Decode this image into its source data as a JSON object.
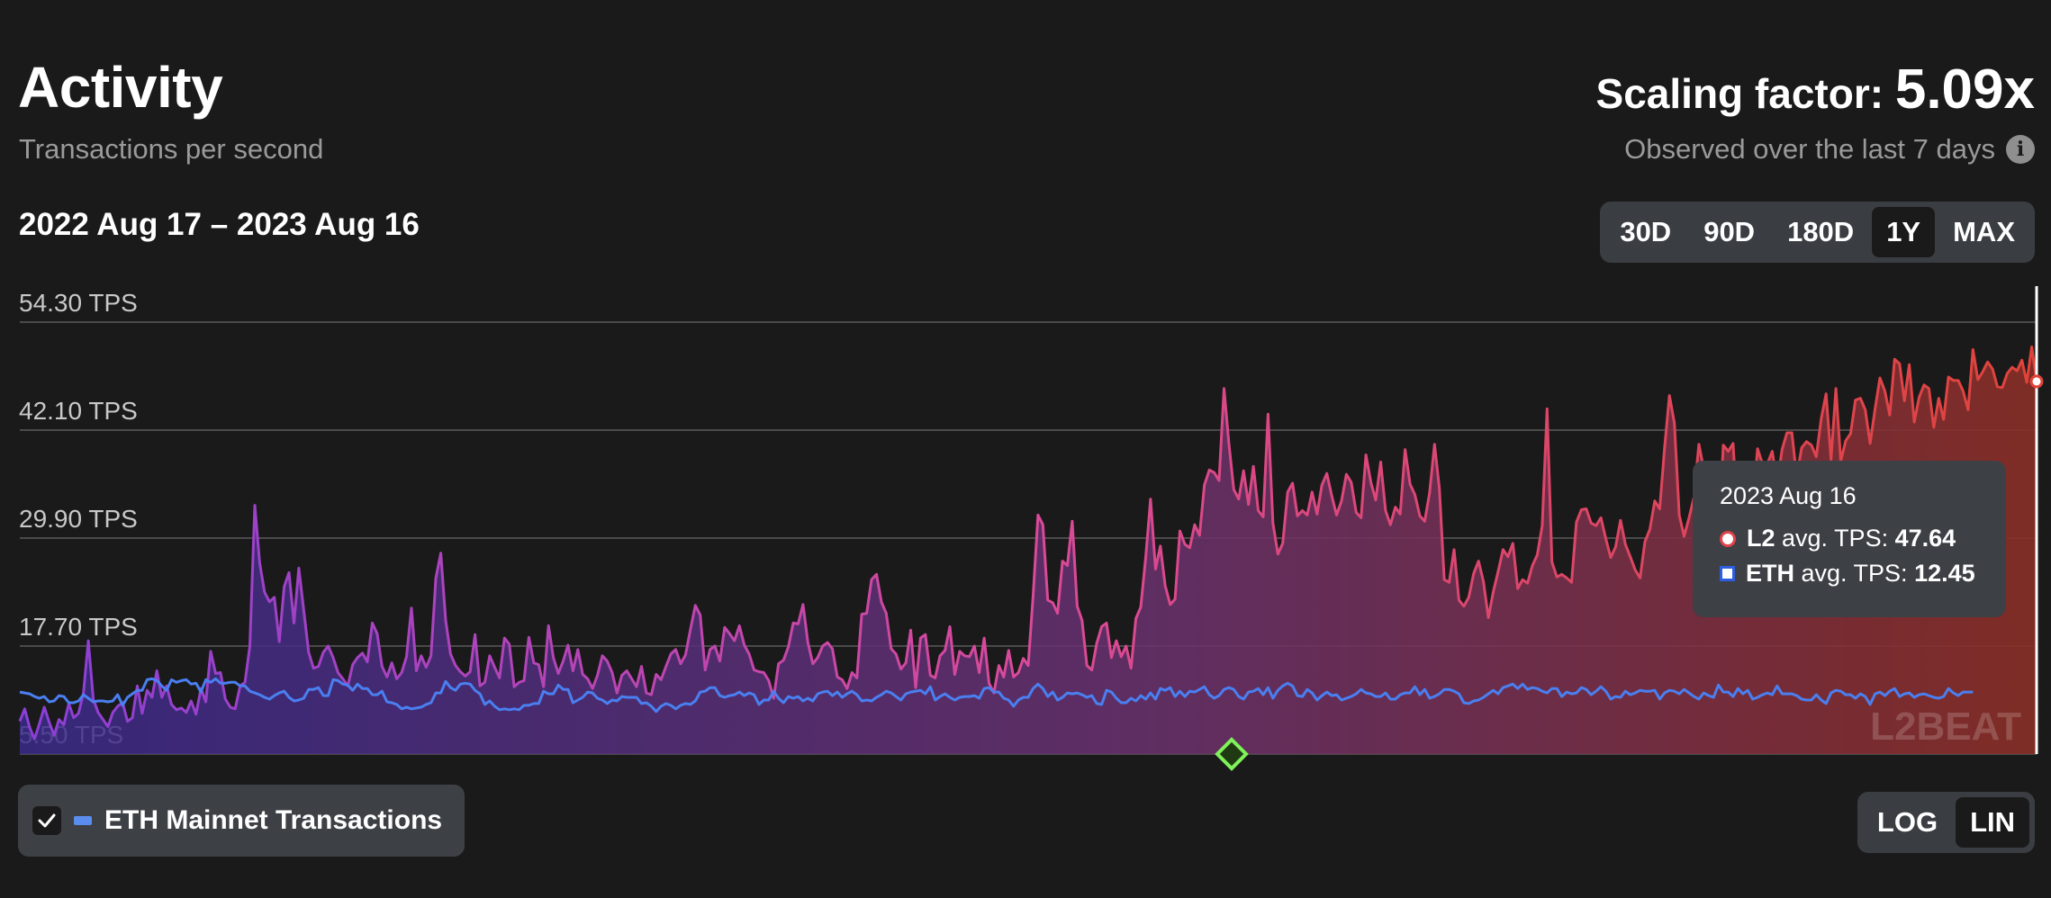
{
  "header": {
    "title": "Activity",
    "subtitle": "Transactions per second",
    "date_range": "2022 Aug 17 – 2023 Aug 16",
    "scaling_label": "Scaling factor: ",
    "scaling_value": "5.09x",
    "observed": "Observed over the last 7 days",
    "info_icon": "i"
  },
  "range_buttons": [
    "30D",
    "90D",
    "180D",
    "1Y",
    "MAX"
  ],
  "range_active": "1Y",
  "scale_buttons": [
    "LOG",
    "LIN"
  ],
  "scale_active": "LIN",
  "toggle": {
    "label": "ETH Mainnet Transactions",
    "checked": true
  },
  "watermark": "L2BEAT",
  "tooltip": {
    "date": "2023 Aug 16",
    "l2_label": "L2",
    "l2_suffix": " avg. TPS: ",
    "l2_value": "47.64",
    "eth_label": "ETH",
    "eth_suffix": " avg. TPS: ",
    "eth_value": "12.45"
  },
  "colors": {
    "background": "#1a1a1a",
    "l2_start": "#8b3fd6",
    "l2_mid": "#d94a9a",
    "l2_end": "#e0433a",
    "eth_line": "#4a7ff0",
    "gridline": "#5a5a5a",
    "milestone": "#7ff25a"
  },
  "chart_data": {
    "type": "line",
    "start_date": "2022 Aug 17",
    "end_date": "2023 Aug 16",
    "ylabels": [
      "54.30 TPS",
      "42.10 TPS",
      "29.90 TPS",
      "17.70 TPS",
      "5.50 TPS"
    ],
    "y_ticks": [
      54.3,
      42.1,
      29.9,
      17.7,
      5.5
    ],
    "ylim": [
      5.5,
      54.3
    ],
    "scale": "linear",
    "grid": true,
    "legend": "bottom-left",
    "milestone_date": "2023 Feb 27",
    "series": [
      {
        "name": "L2",
        "values": [
          9.2,
          10.6,
          8.5,
          7.2,
          8.9,
          10.8,
          9.1,
          7.6,
          9.4,
          8.8,
          11.2,
          9.6,
          10.1,
          12.4,
          18.3,
          11.7,
          10.2,
          9.4,
          8.6,
          10.2,
          10.9,
          11.3,
          9.2,
          9.6,
          13.2,
          10.1,
          12.7,
          11.9,
          14.9,
          11.9,
          13.2,
          11.1,
          10.5,
          10.7,
          10.2,
          11.5,
          10.0,
          12.9,
          11.4,
          17.1,
          14.6,
          14.7,
          11.7,
          10.8,
          10.6,
          13.2,
          13.6,
          17.7,
          33.6,
          27.1,
          23.8,
          22.7,
          23.2,
          18.2,
          24.4,
          26.0,
          20.3,
          26.5,
          21.8,
          17.0,
          15.2,
          15.4,
          17.0,
          17.7,
          16.4,
          14.7,
          14.0,
          13.2,
          15.6,
          16.4,
          16.9,
          15.9,
          20.3,
          19.1,
          15.4,
          14.2,
          15.8,
          14.0,
          14.7,
          16.5,
          22.0,
          14.9,
          16.6,
          15.3,
          16.6,
          25.4,
          28.2,
          20.6,
          16.8,
          15.5,
          14.8,
          14.3,
          14.8,
          19.0,
          13.2,
          13.6,
          16.6,
          15.3,
          14.1,
          18.6,
          17.9,
          13.1,
          13.6,
          13.8,
          18.7,
          15.8,
          15.6,
          13.1,
          20.0,
          16.4,
          14.6,
          16.0,
          17.8,
          14.9,
          17.3,
          14.5,
          14.0,
          12.9,
          14.4,
          16.6,
          16.0,
          14.7,
          12.4,
          14.4,
          14.9,
          14.0,
          13.1,
          15.4,
          12.4,
          12.2,
          14.5,
          13.9,
          15.4,
          16.8,
          17.3,
          15.7,
          16.7,
          19.6,
          22.3,
          21.2,
          15.0,
          17.3,
          17.7,
          16.0,
          19.8,
          19.1,
          18.3,
          20.0,
          17.8,
          16.8,
          15.0,
          14.8,
          14.7,
          13.8,
          11.8,
          15.7,
          16.1,
          17.6,
          20.3,
          20.2,
          22.4,
          18.1,
          15.7,
          16.4,
          17.7,
          18.1,
          17.4,
          14.2,
          13.9,
          12.9,
          14.7,
          14.1,
          21.3,
          21.4,
          25.2,
          25.8,
          22.7,
          21.4,
          17.4,
          16.8,
          15.1,
          15.8,
          19.5,
          13.0,
          18.6,
          19.0,
          14.4,
          14.1,
          16.6,
          17.2,
          19.9,
          14.5,
          17.1,
          16.6,
          16.5,
          17.7,
          14.7,
          18.6,
          13.5,
          12.4,
          15.5,
          14.2,
          17.2,
          14.2,
          14.7,
          16.3,
          15.5,
          23.3,
          32.5,
          31.4,
          22.9,
          22.6,
          21.4,
          27.3,
          26.8,
          31.8,
          22.2,
          20.6,
          15.5,
          15.0,
          18.0,
          19.9,
          20.3,
          16.4,
          18.3,
          16.5,
          17.7,
          15.2,
          20.8,
          22.1,
          27.7,
          34.3,
          26.4,
          29.0,
          24.5,
          22.4,
          23.0,
          30.7,
          29.2,
          28.8,
          31.4,
          30.2,
          35.9,
          37.6,
          37.3,
          36.4,
          46.8,
          40.6,
          35.4,
          34.3,
          37.5,
          33.7,
          38.0,
          33.0,
          32.3,
          43.9,
          31.6,
          28.1,
          29.3,
          35.1,
          36.1,
          32.4,
          33.0,
          32.5,
          35.1,
          32.6,
          35.9,
          37.2,
          34.7,
          32.5,
          34.1,
          37.1,
          36.2,
          32.8,
          32.2,
          39.3,
          36.2,
          34.2,
          38.5,
          33.0,
          31.4,
          33.4,
          32.6,
          39.9,
          36.0,
          34.8,
          32.4,
          31.8,
          35.0,
          40.5,
          35.5,
          25.2,
          24.9,
          28.6,
          22.9,
          22.2,
          23.2,
          25.9,
          27.3,
          25.0,
          20.9,
          23.8,
          26.1,
          28.6,
          27.8,
          29.3,
          24.2,
          25.2,
          24.8,
          26.8,
          28.0,
          31.3,
          44.5,
          27.2,
          25.5,
          25.8,
          25.4,
          24.9,
          31.7,
          33.1,
          33.2,
          31.6,
          31.3,
          32.2,
          29.8,
          27.7,
          28.9,
          31.9,
          29.2,
          27.8,
          26.3,
          25.4,
          29.5,
          30.9,
          34.1,
          33.2,
          40.1,
          46.0,
          42.9,
          32.5,
          30.1,
          32.2,
          34.5,
          40.5,
          37.7,
          32.4,
          37.8,
          29.3,
          40.4,
          39.7,
          40.6,
          31.2,
          37.9,
          34.7,
          33.5,
          40.0,
          38.3,
          38.3,
          39.7,
          36.0,
          39.9,
          41.8,
          41.8,
          36.8,
          40.1,
          40.8,
          40.4,
          39.1,
          43.4,
          46.2,
          38.8,
          46.8,
          38.6,
          40.9,
          41.7,
          45.5,
          45.7,
          44.4,
          40.6,
          44.5,
          48.0,
          46.5,
          43.8,
          50.1,
          49.6,
          45.4,
          49.5,
          43.0,
          45.8,
          47.2,
          46.8,
          42.4,
          45.7,
          43.3,
          48.1,
          47.7,
          47.7,
          46.5,
          44.4,
          51.2,
          47.8,
          48.7,
          49.8,
          49.0,
          47.0,
          46.9,
          48.5,
          49.2,
          48.8,
          50.0,
          47.5,
          51.5,
          47.6
        ]
      },
      {
        "name": "ETH",
        "values": [
          12.5,
          12.4,
          12.3,
          12.0,
          11.8,
          12.0,
          11.4,
          11.5,
          12.1,
          12.0,
          11.3,
          11.3,
          11.5,
          12.2,
          11.8,
          11.4,
          11.5,
          11.5,
          11.4,
          11.5,
          12.2,
          11.0,
          11.9,
          12.3,
          12.7,
          12.7,
          13.9,
          14.0,
          13.8,
          13.2,
          12.7,
          13.9,
          13.6,
          13.8,
          13.9,
          13.4,
          13.5,
          12.5,
          13.9,
          13.6,
          14.0,
          13.5,
          13.5,
          13.6,
          13.6,
          13.2,
          13.2,
          12.6,
          12.4,
          12.2,
          11.9,
          11.7,
          12.1,
          12.4,
          12.6,
          11.9,
          11.5,
          11.6,
          11.8,
          12.8,
          12.8,
          13.0,
          12.1,
          12.1,
          13.9,
          13.8,
          13.4,
          13.3,
          12.7,
          13.4,
          12.9,
          12.9,
          12.2,
          12.2,
          12.6,
          11.4,
          11.3,
          11.1,
          10.6,
          10.8,
          10.6,
          10.7,
          10.8,
          11.1,
          11.3,
          12.4,
          12.4,
          13.7,
          13.0,
          12.7,
          13.4,
          13.5,
          13.4,
          12.7,
          12.3,
          11.1,
          11.5,
          10.9,
          10.5,
          10.6,
          10.5,
          10.6,
          10.5,
          11.0,
          11.0,
          11.2,
          11.2,
          12.6,
          12.3,
          12.3,
          13.3,
          12.8,
          12.8,
          11.3,
          11.6,
          11.9,
          12.5,
          12.4,
          11.8,
          11.6,
          11.2,
          11.6,
          11.5,
          12.0,
          11.9,
          11.9,
          11.9,
          11.2,
          11.3,
          10.9,
          10.3,
          10.9,
          11.2,
          11.0,
          10.6,
          11.0,
          11.2,
          11.1,
          11.5,
          12.5,
          12.6,
          13.0,
          13.0,
          12.1,
          11.9,
          12.1,
          12.2,
          12.5,
          12.1,
          12.4,
          12.2,
          11.1,
          11.6,
          11.6,
          12.6,
          11.8,
          11.3,
          12.0,
          11.8,
          12.0,
          11.5,
          11.8,
          11.5,
          12.3,
          12.5,
          12.6,
          12.1,
          12.5,
          11.9,
          12.3,
          12.6,
          12.2,
          11.5,
          11.6,
          11.5,
          11.9,
          12.2,
          12.6,
          12.4,
          12.0,
          11.6,
          12.3,
          12.5,
          12.6,
          12.7,
          12.3,
          13.1,
          11.6,
          12.0,
          12.3,
          11.9,
          11.6,
          11.9,
          12.0,
          12.0,
          12.1,
          11.8,
          12.9,
          13.0,
          12.5,
          12.5,
          11.8,
          11.6,
          10.9,
          11.6,
          11.9,
          11.9,
          12.9,
          13.4,
          12.9,
          12.0,
          12.5,
          11.6,
          11.9,
          12.4,
          12.3,
          12.4,
          12.2,
          11.9,
          12.1,
          11.2,
          11.1,
          12.7,
          12.5,
          11.8,
          11.3,
          11.3,
          11.8,
          11.5,
          12.1,
          11.7,
          12.4,
          11.7,
          12.9,
          12.7,
          13.0,
          12.0,
          12.6,
          12.0,
          12.6,
          12.5,
          12.8,
          13.1,
          12.2,
          11.8,
          12.1,
          12.8,
          13.0,
          12.8,
          12.0,
          11.7,
          12.5,
          12.6,
          12.9,
          12.2,
          13.0,
          11.8,
          12.7,
          13.2,
          13.5,
          13.2,
          12.1,
          12.0,
          12.8,
          12.4,
          11.6,
          12.1,
          12.5,
          12.1,
          12.2,
          11.6,
          11.8,
          12.0,
          12.3,
          12.8,
          12.4,
          12.3,
          12.0,
          12.0,
          12.4,
          11.7,
          11.7,
          12.2,
          12.4,
          12.4,
          13.1,
          12.2,
          12.8,
          11.8,
          12.0,
          12.3,
          12.8,
          12.8,
          12.6,
          12.3,
          11.3,
          11.2,
          11.5,
          11.6,
          11.9,
          12.3,
          12.7,
          12.3,
          13.0,
          13.2,
          13.4,
          12.9,
          13.4,
          12.8,
          13.0,
          12.9,
          12.6,
          12.4,
          12.9,
          12.9,
          12.0,
          12.5,
          12.3,
          12.4,
          13.0,
          12.8,
          12.2,
          12.6,
          13.1,
          12.6,
          11.7,
          12.0,
          11.9,
          12.6,
          12.2,
          12.4,
          12.7,
          12.6,
          12.6,
          12.7,
          11.7,
          12.4,
          12.7,
          12.6,
          12.3,
          12.8,
          12.4,
          12.0,
          11.7,
          12.4,
          12.1,
          11.9,
          13.3,
          12.5,
          12.5,
          12.0,
          12.9,
          12.3,
          12.7,
          11.7,
          11.9,
          12.2,
          12.4,
          12.2,
          13.2,
          12.3,
          12.3,
          12.3,
          12.1,
          11.7,
          11.6,
          11.6,
          12.2,
          11.6,
          11.2,
          12.4,
          12.7,
          12.6,
          12.2,
          12.2,
          11.8,
          12.3,
          12.0,
          11.1,
          12.3,
          12.5,
          12.1,
          12.6,
          12.9,
          12.0,
          12.3,
          12.4,
          11.9,
          12.2,
          12.3,
          12.1,
          11.9,
          11.8,
          12.0,
          12.9,
          12.4,
          12.1,
          12.5,
          12.5,
          12.5
        ]
      }
    ]
  }
}
